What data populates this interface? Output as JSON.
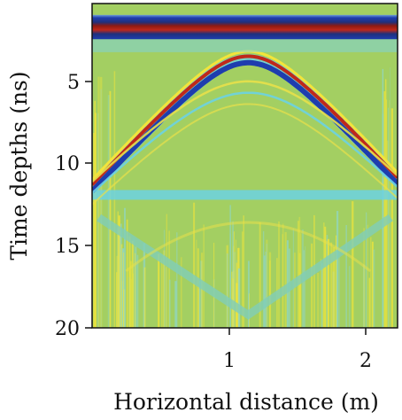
{
  "chart_data": {
    "type": "heatmap",
    "title": "",
    "xlabel": "Horizontal distance (m)",
    "ylabel": "Time depths (ns)",
    "xlim": [
      0,
      2.25
    ],
    "ylim": [
      20,
      0
    ],
    "xticks": [
      {
        "value": 1,
        "label": "1"
      },
      {
        "value": 2,
        "label": "2"
      }
    ],
    "yticks": [
      {
        "value": 5,
        "label": "5"
      },
      {
        "value": 10,
        "label": "10"
      },
      {
        "value": 15,
        "label": "15"
      },
      {
        "value": 20,
        "label": "20"
      }
    ],
    "colormap": "jet",
    "colors": {
      "background": "#a3cf62",
      "dark_red": "#8e1a12",
      "red": "#e2401f",
      "yellow": "#f3e43a",
      "cyan": "#6cd2e3",
      "blue": "#1e3dae",
      "navy": "#20307c"
    },
    "features": {
      "direct_wave_band_ns": [
        0.7,
        2.2
      ],
      "hyperbola_apex": {
        "x_m": 1.15,
        "t_ns": 3.1
      },
      "hyperbola_apex_lower": {
        "x_m": 1.15,
        "t_ns": 4.8
      },
      "horizontal_band_ns": 11.8,
      "lower_v_apex": {
        "x_m": 1.15,
        "t_ns": 19.2
      }
    }
  }
}
